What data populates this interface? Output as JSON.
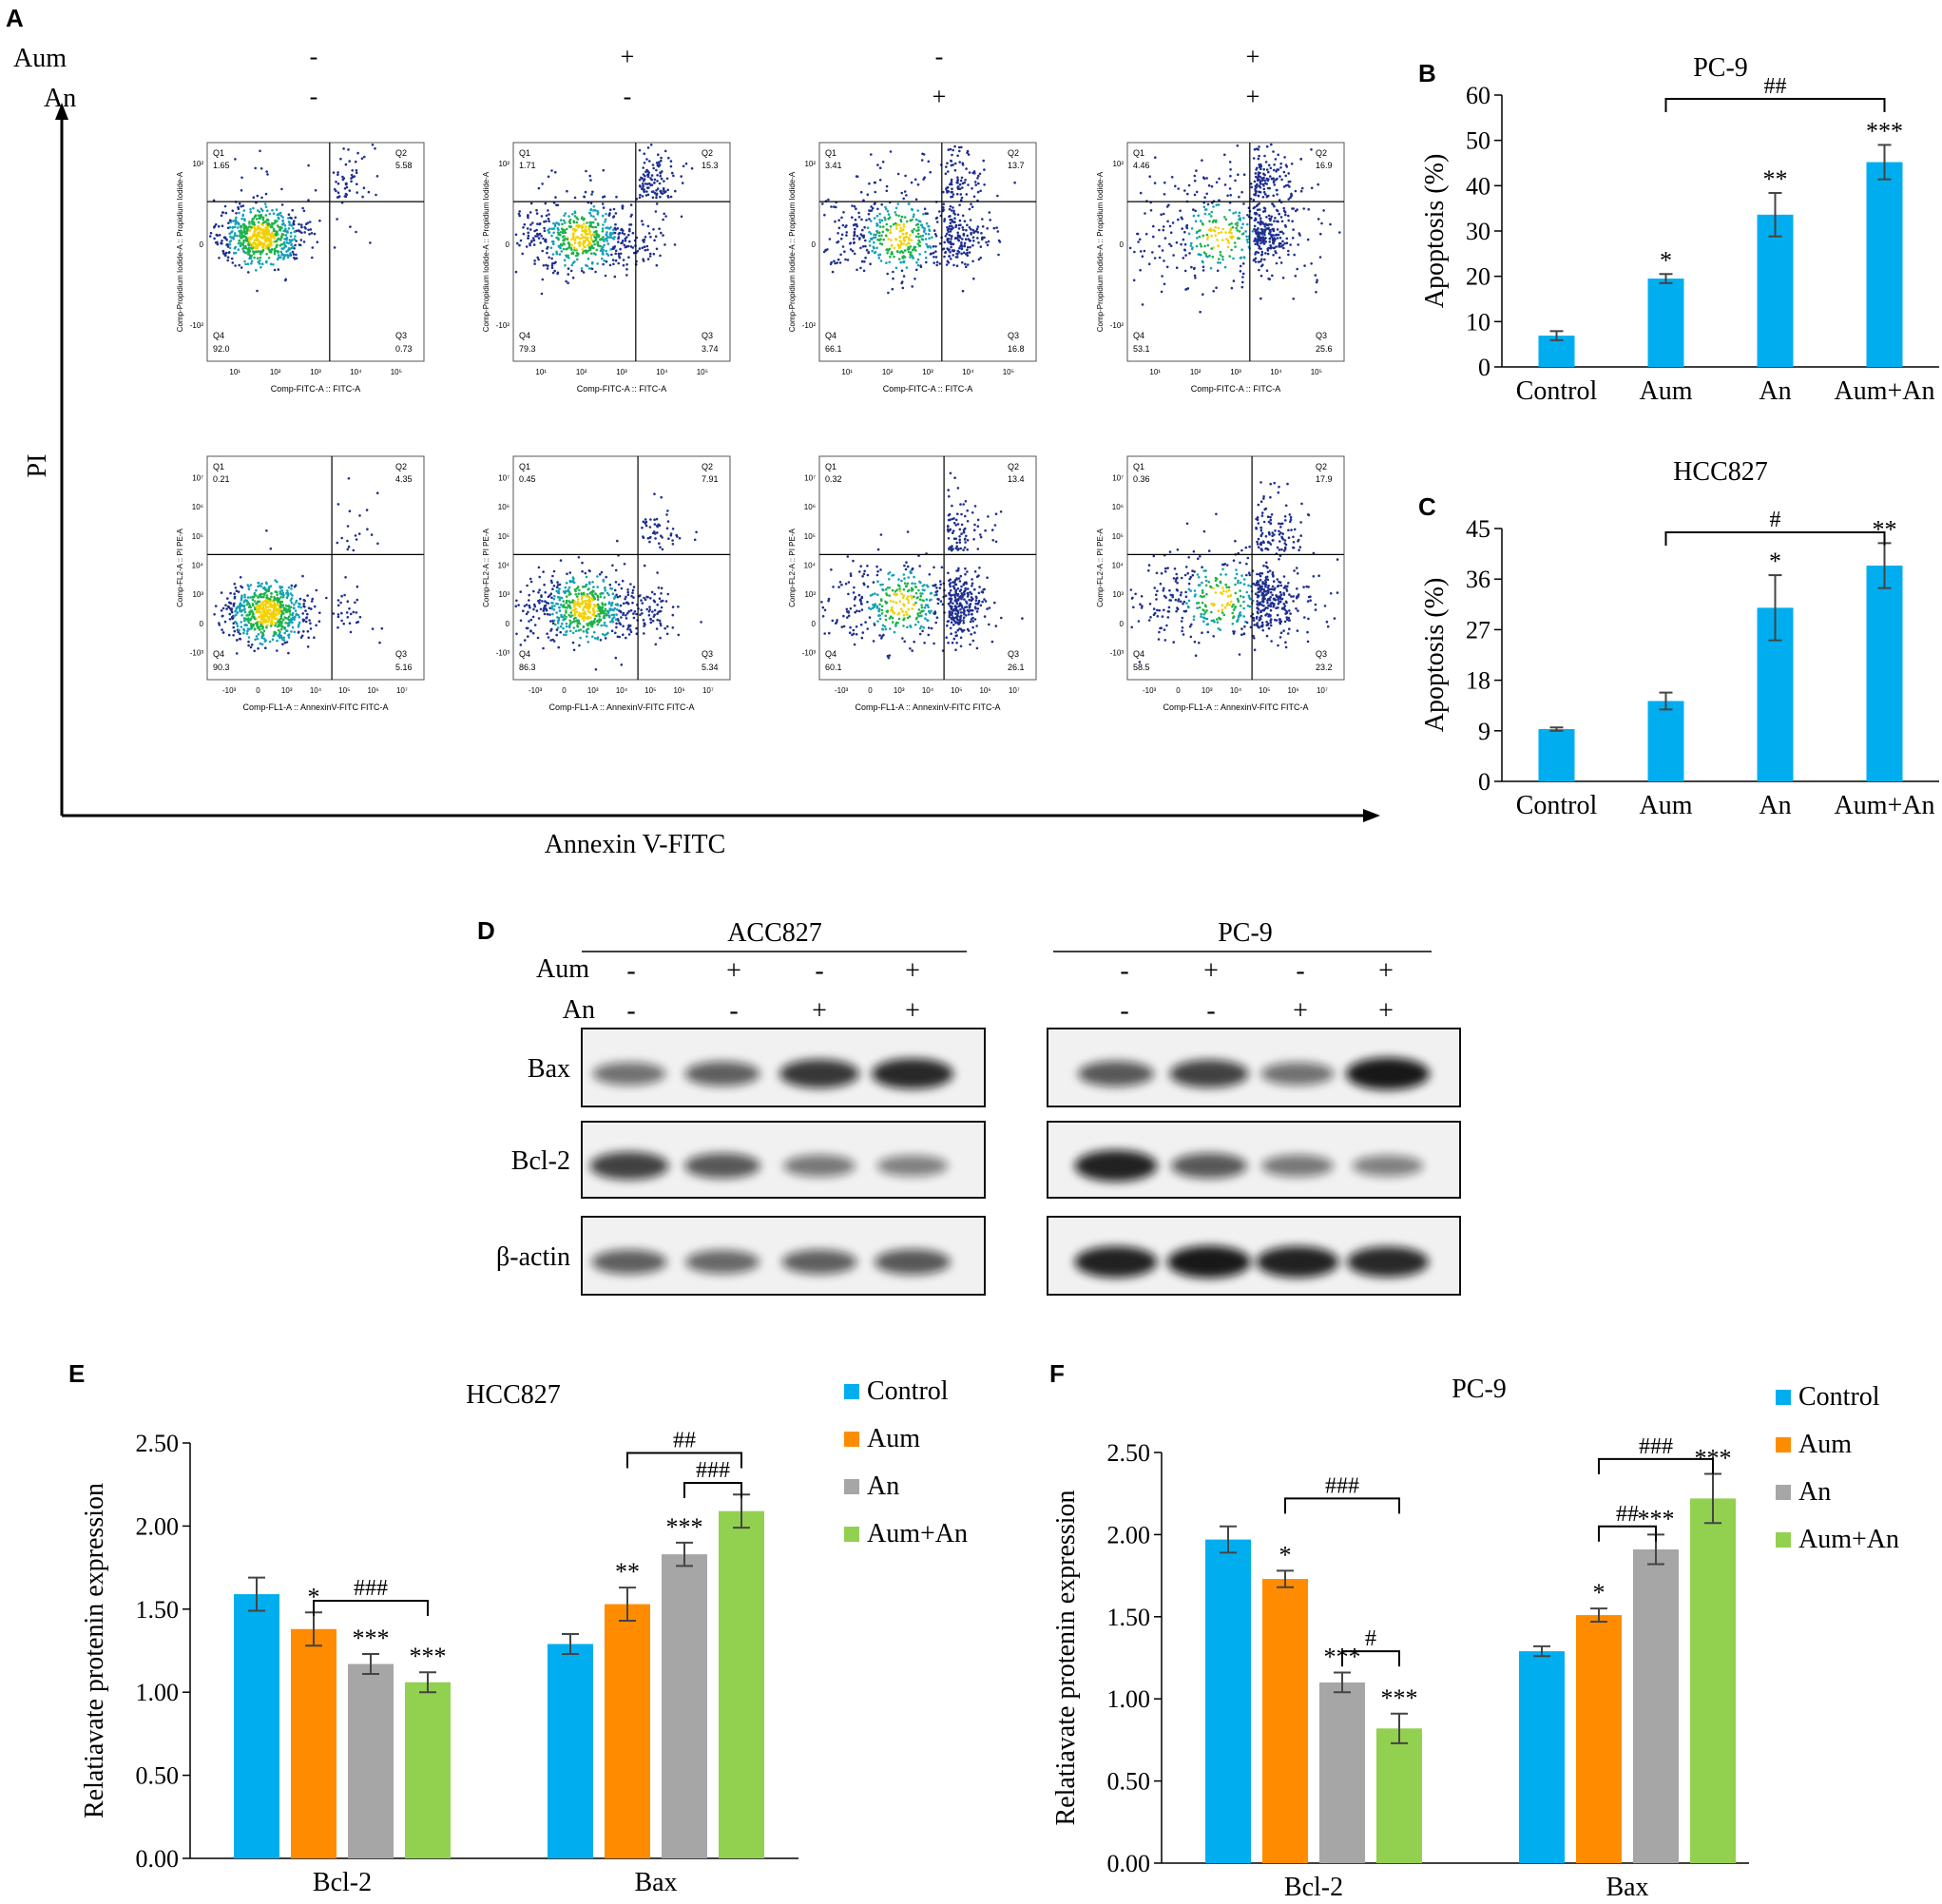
{
  "panel_letters": {
    "A": "A",
    "B": "B",
    "C": "C",
    "D": "D",
    "E": "E",
    "F": "F"
  },
  "colors": {
    "Control": "#00aeef",
    "Aum": "#ff8c00",
    "An": "#a6a6a6",
    "Aum+An": "#92d050"
  },
  "panelA": {
    "rows": [
      {
        "label": "Aum",
        "signs": [
          "-",
          "+",
          "-",
          "+"
        ]
      },
      {
        "label": "An",
        "signs": [
          "-",
          "-",
          "+",
          "+"
        ]
      }
    ],
    "ylabel": "PI",
    "xlabel": "Annexin V-FITC",
    "top_row": {
      "xaxis_label": "Comp-FITC-A :: FITC-A",
      "yaxis_label": "Comp-Propidium Iodide-A :: Propidium Iodide-A",
      "x_ticks": [
        "10¹",
        "10²",
        "10³",
        "10⁴",
        "10⁵"
      ],
      "y_ticks": [
        "10²",
        "0",
        "-10²"
      ],
      "plots": [
        {
          "Q1": "1.65",
          "Q2": "5.58",
          "Q3": "0.73",
          "Q4": "92.0"
        },
        {
          "Q1": "1.71",
          "Q2": "15.3",
          "Q3": "3.74",
          "Q4": "79.3"
        },
        {
          "Q1": "3.41",
          "Q2": "13.7",
          "Q3": "16.8",
          "Q4": "66.1"
        },
        {
          "Q1": "4.46",
          "Q2": "16.9",
          "Q3": "25.6",
          "Q4": "53.1"
        }
      ]
    },
    "bottom_row": {
      "xaxis_label": "Comp-FL1-A :: AnnexinV-FITC FITC-A",
      "yaxis_label": "Comp-FL2-A :: PI PE-A",
      "x_ticks": [
        "-10³",
        "0",
        "10³",
        "10⁴",
        "10⁵",
        "10⁶",
        "10⁷"
      ],
      "y_ticks": [
        "10⁷",
        "10⁶",
        "10⁵",
        "10⁴",
        "10³",
        "0",
        "-10³"
      ],
      "plots": [
        {
          "Q1": "0.21",
          "Q2": "4.35",
          "Q3": "5.16",
          "Q4": "90.3"
        },
        {
          "Q1": "0.45",
          "Q2": "7.91",
          "Q3": "5.34",
          "Q4": "86.3"
        },
        {
          "Q1": "0.32",
          "Q2": "13.4",
          "Q3": "26.1",
          "Q4": "60.1"
        },
        {
          "Q1": "0.36",
          "Q2": "17.9",
          "Q3": "23.2",
          "Q4": "58.5"
        }
      ]
    },
    "quadrant_names": {
      "Q1": "Q1",
      "Q2": "Q2",
      "Q3": "Q3",
      "Q4": "Q4"
    }
  },
  "panelD": {
    "groups": [
      {
        "title": "ACC827",
        "aum": [
          "-",
          "+",
          "-",
          "+"
        ],
        "an": [
          "-",
          "-",
          "+",
          "+"
        ]
      },
      {
        "title": "PC-9",
        "aum": [
          "-",
          "+",
          "-",
          "+"
        ],
        "an": [
          "-",
          "-",
          "+",
          "+"
        ]
      }
    ],
    "row_labels": {
      "aum": "Aum",
      "an": "An"
    },
    "blots": [
      "Bax",
      "Bcl-2",
      "β-actin"
    ],
    "band_intensity": {
      "ACC827": {
        "Bax": [
          0.45,
          0.55,
          0.8,
          0.9
        ],
        "Bcl-2": [
          0.75,
          0.6,
          0.4,
          0.35
        ],
        "β-actin": [
          0.55,
          0.5,
          0.55,
          0.6
        ]
      },
      "PC-9": {
        "Bax": [
          0.6,
          0.75,
          0.45,
          1.0
        ],
        "Bcl-2": [
          0.95,
          0.6,
          0.4,
          0.35
        ],
        "β-actin": [
          0.95,
          1.0,
          0.95,
          0.9
        ]
      }
    }
  },
  "chart_data": [
    {
      "type": "bar",
      "panel": "B",
      "title": "PC-9",
      "categories": [
        "Control",
        "Aum",
        "An",
        "Aum+An"
      ],
      "values": [
        6.9,
        19.5,
        33.6,
        45.2
      ],
      "errors": [
        1.0,
        1.0,
        4.8,
        3.8
      ],
      "sig": [
        "",
        "*",
        "**",
        "***"
      ],
      "brackets": [
        {
          "from": 1,
          "to": 3,
          "label": "##"
        }
      ],
      "ylabel": "Apoptosis (%)",
      "ylim": [
        0,
        60
      ],
      "yticks": [
        0,
        10,
        20,
        30,
        40,
        50,
        60
      ],
      "ytick_labels": [
        "0",
        "10",
        "20",
        "30",
        "40",
        "50",
        "60"
      ],
      "color": "#00aeef"
    },
    {
      "type": "bar",
      "panel": "C",
      "title": "HCC827",
      "categories": [
        "Control",
        "Aum",
        "An",
        "Aum+An"
      ],
      "values": [
        9.3,
        14.3,
        30.9,
        38.4
      ],
      "errors": [
        0.3,
        1.5,
        5.8,
        4.0
      ],
      "sig": [
        "",
        "",
        "*",
        "**"
      ],
      "brackets": [
        {
          "from": 1,
          "to": 3,
          "label": "#"
        }
      ],
      "ylabel": "Apoptosis (%)",
      "ylim": [
        0,
        45
      ],
      "yticks": [
        0,
        9,
        18,
        27,
        36,
        45
      ],
      "ytick_labels": [
        "0",
        "9",
        "18",
        "27",
        "36",
        "45"
      ],
      "color": "#00aeef"
    },
    {
      "type": "bar",
      "panel": "E",
      "title": "HCC827",
      "categories": [
        "Bcl-2",
        "Bax"
      ],
      "series": [
        {
          "name": "Control",
          "values": [
            1.59,
            1.29
          ],
          "errors": [
            0.1,
            0.06
          ],
          "sig": [
            "",
            ""
          ]
        },
        {
          "name": "Aum",
          "values": [
            1.38,
            1.53
          ],
          "errors": [
            0.1,
            0.1
          ],
          "sig": [
            "*",
            "**"
          ]
        },
        {
          "name": "An",
          "values": [
            1.17,
            1.83
          ],
          "errors": [
            0.06,
            0.07
          ],
          "sig": [
            "***",
            "***"
          ]
        },
        {
          "name": "Aum+An",
          "values": [
            1.06,
            2.09
          ],
          "errors": [
            0.06,
            0.1
          ],
          "sig": [
            "***",
            ""
          ]
        }
      ],
      "brackets": [
        {
          "category": 0,
          "from": 1,
          "to": 3,
          "label": "###",
          "y": 1.55
        },
        {
          "category": 1,
          "from": 2,
          "to": 3,
          "label": "###",
          "y": 2.26
        },
        {
          "category": 1,
          "from": 1,
          "to": 3,
          "label": "##",
          "y": 2.44
        }
      ],
      "ylabel": "Relatiavate protenin expression",
      "ylim": [
        0,
        2.5
      ],
      "yticks": [
        0,
        0.5,
        1.0,
        1.5,
        2.0,
        2.5
      ],
      "ytick_labels": [
        "0.00",
        "0.50",
        "1.00",
        "1.50",
        "2.00",
        "2.50"
      ],
      "legend": "right"
    },
    {
      "type": "bar",
      "panel": "F",
      "title": "PC-9",
      "categories": [
        "Bcl-2",
        "Bax"
      ],
      "series": [
        {
          "name": "Control",
          "values": [
            1.97,
            1.29
          ],
          "errors": [
            0.08,
            0.03
          ],
          "sig": [
            "",
            ""
          ]
        },
        {
          "name": "Aum",
          "values": [
            1.73,
            1.51
          ],
          "errors": [
            0.05,
            0.04
          ],
          "sig": [
            "*",
            "*"
          ]
        },
        {
          "name": "An",
          "values": [
            1.1,
            1.91
          ],
          "errors": [
            0.06,
            0.09
          ],
          "sig": [
            "***",
            "***"
          ]
        },
        {
          "name": "Aum+An",
          "values": [
            0.82,
            2.22
          ],
          "errors": [
            0.09,
            0.15
          ],
          "sig": [
            "***",
            "***"
          ]
        }
      ],
      "brackets": [
        {
          "category": 0,
          "from": 1,
          "to": 3,
          "label": "###",
          "y": 2.22
        },
        {
          "category": 0,
          "from": 2,
          "to": 3,
          "label": "#",
          "y": 1.29
        },
        {
          "category": 1,
          "from": 1,
          "to": 2,
          "label": "##",
          "y": 2.05
        },
        {
          "category": 1,
          "from": 1,
          "to": 3,
          "label": "###",
          "y": 2.46
        }
      ],
      "ylabel": "Relatiavate protenin expression",
      "ylim": [
        0,
        2.5
      ],
      "yticks": [
        0,
        0.5,
        1.0,
        1.5,
        2.0,
        2.5
      ],
      "ytick_labels": [
        "0.00",
        "0.50",
        "1.00",
        "1.50",
        "2.00",
        "2.50"
      ],
      "legend": "right"
    }
  ]
}
